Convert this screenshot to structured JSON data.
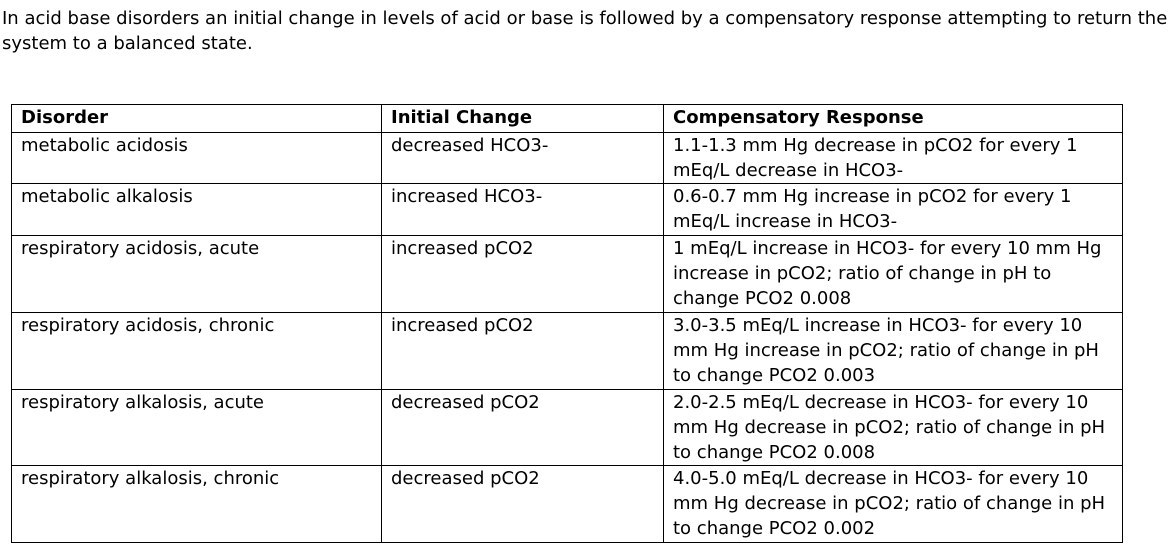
{
  "intro": "In acid base disorders an initial change in levels of acid or base is followed by a compensatory response attempting to return the system to a balanced state.",
  "table": {
    "headers": [
      "Disorder",
      "Initial Change",
      "Compensatory Response"
    ],
    "rows": [
      [
        "metabolic acidosis",
        "decreased HCO3-",
        "1.1-1.3 mm Hg decrease in pCO2 for every 1 mEq/L decrease in HCO3-"
      ],
      [
        "metabolic alkalosis",
        "increased HCO3-",
        "0.6-0.7 mm Hg increase in pCO2 for every 1 mEq/L increase in HCO3-"
      ],
      [
        "respiratory acidosis, acute",
        "increased pCO2",
        "1 mEq/L increase in HCO3- for every 10 mm Hg increase in pCO2; ratio of change in pH to change PCO2 0.008"
      ],
      [
        "respiratory acidosis, chronic",
        "increased pCO2",
        "3.0-3.5 mEq/L increase in HCO3- for every 10 mm Hg increase in pCO2; ratio of change in pH to change PCO2 0.003"
      ],
      [
        "respiratory alkalosis, acute",
        "decreased pCO2",
        "2.0-2.5 mEq/L decrease in HCO3- for every 10 mm Hg decrease in pCO2; ratio of change in pH to change PCO2 0.008"
      ],
      [
        "respiratory alkalosis, chronic",
        "decreased pCO2",
        "4.0-5.0 mEq/L decrease in HCO3- for every 10 mm Hg decrease in pCO2; ratio of change in pH to change PCO2 0.002"
      ]
    ]
  }
}
